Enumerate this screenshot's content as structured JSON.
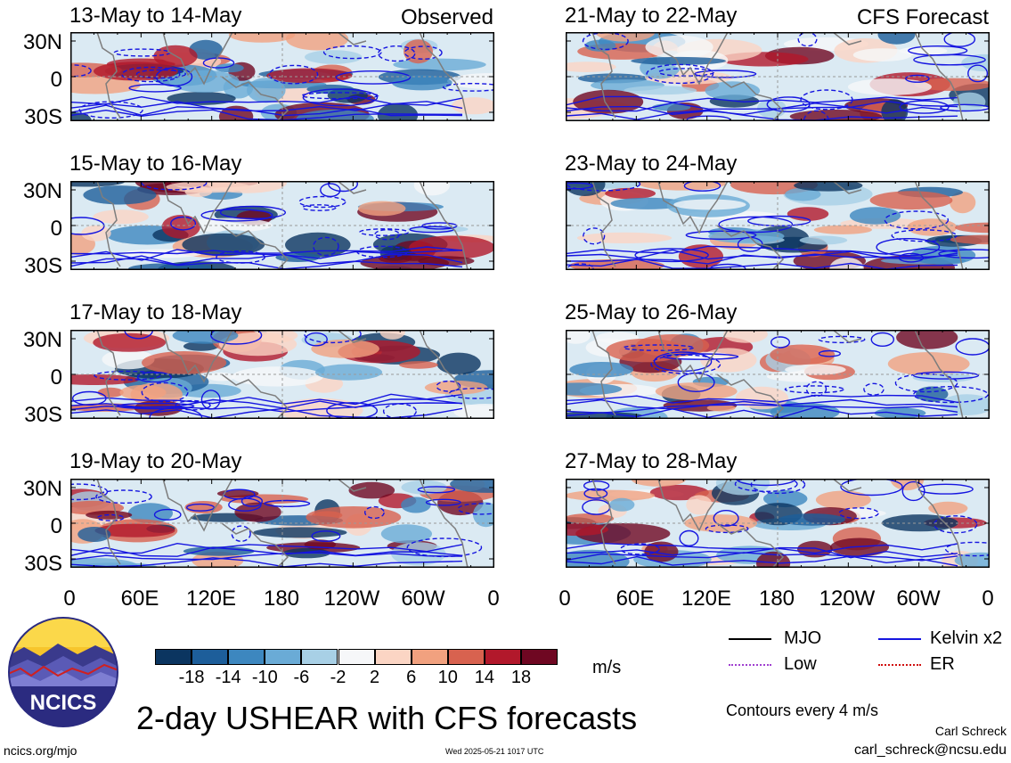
{
  "panels": {
    "observed": [
      {
        "title": "13-May to 14-May",
        "tag": "Observed"
      },
      {
        "title": "15-May to 16-May",
        "tag": ""
      },
      {
        "title": "17-May to 18-May",
        "tag": ""
      },
      {
        "title": "19-May to 20-May",
        "tag": ""
      }
    ],
    "forecast": [
      {
        "title": "21-May to 22-May",
        "tag": "CFS Forecast"
      },
      {
        "title": "23-May to 24-May",
        "tag": ""
      },
      {
        "title": "25-May to 26-May",
        "tag": ""
      },
      {
        "title": "27-May to 28-May",
        "tag": ""
      }
    ]
  },
  "chart_data": {
    "type": "heatmap",
    "title": "2-day USHEAR with CFS forecasts",
    "variable": "USHEAR",
    "unit": "m/s",
    "lat_ticks": [
      "30N",
      "0",
      "30S"
    ],
    "lon_ticks": [
      "0",
      "60E",
      "120E",
      "180",
      "120W",
      "60W",
      "0"
    ],
    "colorbar": {
      "ticks": [
        "-18",
        "-14",
        "-10",
        "-6",
        "-2",
        "2",
        "6",
        "10",
        "14",
        "18"
      ],
      "colors": [
        "#0b3560",
        "#1d5e9a",
        "#3d87bf",
        "#6aabd6",
        "#a8d0e6",
        "#f6f7f9",
        "#fbd5c4",
        "#f1a17f",
        "#d8624f",
        "#b2182b",
        "#6f0722"
      ]
    },
    "contour_note": "Contours every 4 m/s",
    "legend": [
      {
        "label": "MJO",
        "color": "#000000"
      },
      {
        "label": "Kelvin x2",
        "color": "#1515e0"
      },
      {
        "label": "Low",
        "color": "#a040d0"
      },
      {
        "label": "ER",
        "color": "#d01010"
      }
    ]
  },
  "legend_labels": {
    "mjo": "MJO",
    "kelvin": "Kelvin x2",
    "low": "Low",
    "er": "ER"
  },
  "footer": {
    "logo_text": "NCICS",
    "site": "ncics.org/mjo",
    "timestamp": "Wed 2025-05-21 1017 UTC",
    "author": "Carl Schreck",
    "email": "carl_schreck@ncsu.edu",
    "contours": "Contours every 4 m/s",
    "unit": "m/s"
  }
}
